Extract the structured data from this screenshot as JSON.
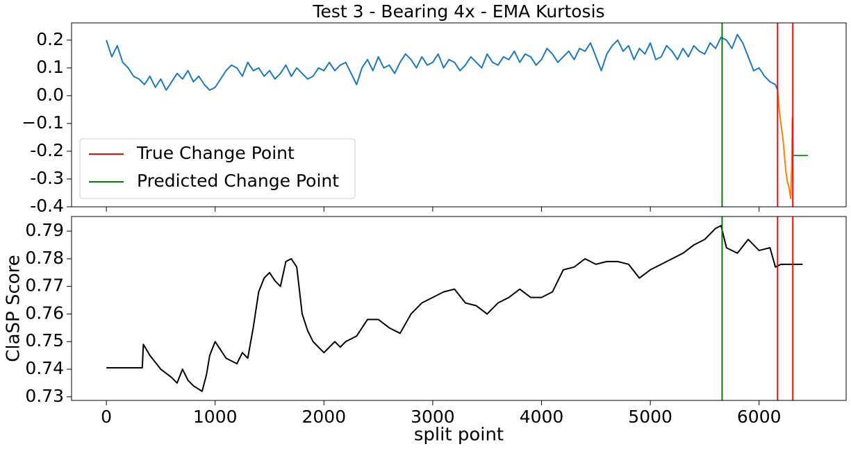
{
  "chart_data": [
    {
      "type": "line",
      "title": "Test 3 - Bearing 4x - EMA Kurtosis",
      "xlim": [
        -320,
        6800
      ],
      "xticks": [
        0,
        1000,
        2000,
        3000,
        4000,
        5000,
        6000
      ],
      "show_xtick_labels": false,
      "ylim": [
        -0.4,
        0.262
      ],
      "yticks": [
        -0.4,
        -0.3,
        -0.2,
        {
          "value": -0.1,
          "label": "−0.1"
        },
        {
          "value": 0,
          "label": "0.0"
        },
        0.1,
        0.2
      ],
      "grid": false,
      "legend": "lower left",
      "series": [
        {
          "color": "#1f77b4",
          "x": [
            0,
            50,
            100,
            150,
            200,
            250,
            300,
            350,
            400,
            450,
            500,
            550,
            600,
            650,
            700,
            750,
            800,
            850,
            900,
            950,
            1000,
            1050,
            1100,
            1150,
            1200,
            1250,
            1300,
            1350,
            1400,
            1450,
            1500,
            1550,
            1600,
            1650,
            1700,
            1750,
            1800,
            1850,
            1900,
            1950,
            2000,
            2050,
            2100,
            2150,
            2200,
            2250,
            2300,
            2350,
            2400,
            2450,
            2500,
            2550,
            2600,
            2650,
            2700,
            2750,
            2800,
            2850,
            2900,
            2950,
            3000,
            3050,
            3100,
            3150,
            3200,
            3250,
            3300,
            3350,
            3400,
            3450,
            3500,
            3550,
            3600,
            3650,
            3700,
            3750,
            3800,
            3850,
            3900,
            3950,
            4000,
            4050,
            4100,
            4150,
            4200,
            4250,
            4300,
            4350,
            4400,
            4450,
            4500,
            4550,
            4600,
            4650,
            4700,
            4750,
            4800,
            4850,
            4900,
            4950,
            5000,
            5050,
            5100,
            5150,
            5200,
            5250,
            5300,
            5350,
            5400,
            5450,
            5500,
            5550,
            5600,
            5650,
            5700,
            5750,
            5800,
            5850,
            5900,
            5950,
            6000,
            6050,
            6100,
            6150,
            6170
          ],
          "values": [
            0.2,
            0.14,
            0.18,
            0.12,
            0.1,
            0.07,
            0.06,
            0.04,
            0.07,
            0.03,
            0.06,
            0.02,
            0.05,
            0.08,
            0.06,
            0.09,
            0.05,
            0.07,
            0.04,
            0.02,
            0.03,
            0.06,
            0.09,
            0.11,
            0.1,
            0.07,
            0.12,
            0.09,
            0.1,
            0.07,
            0.09,
            0.06,
            0.08,
            0.11,
            0.07,
            0.1,
            0.08,
            0.06,
            0.07,
            0.1,
            0.09,
            0.12,
            0.09,
            0.11,
            0.12,
            0.08,
            0.04,
            0.1,
            0.13,
            0.09,
            0.14,
            0.1,
            0.11,
            0.08,
            0.12,
            0.15,
            0.13,
            0.1,
            0.14,
            0.11,
            0.12,
            0.15,
            0.1,
            0.13,
            0.12,
            0.09,
            0.11,
            0.14,
            0.12,
            0.1,
            0.15,
            0.12,
            0.11,
            0.14,
            0.13,
            0.16,
            0.12,
            0.15,
            0.14,
            0.11,
            0.13,
            0.17,
            0.15,
            0.12,
            0.14,
            0.16,
            0.13,
            0.17,
            0.16,
            0.19,
            0.14,
            0.09,
            0.15,
            0.18,
            0.2,
            0.16,
            0.18,
            0.13,
            0.17,
            0.15,
            0.19,
            0.13,
            0.14,
            0.18,
            0.16,
            0.13,
            0.17,
            0.14,
            0.18,
            0.16,
            0.15,
            0.19,
            0.17,
            0.21,
            0.2,
            0.17,
            0.22,
            0.19,
            0.14,
            0.09,
            0.1,
            0.07,
            0.05,
            0.04,
            0.02
          ]
        },
        {
          "color": "#ff7f0e",
          "x": [
            6170,
            6185,
            6200,
            6215,
            6230,
            6245,
            6260,
            6275,
            6290,
            6300,
            6305,
            6310
          ],
          "values": [
            0.02,
            -0.05,
            -0.1,
            -0.14,
            -0.2,
            -0.27,
            -0.31,
            -0.33,
            -0.37,
            -0.25,
            -0.08,
            -0.2
          ]
        },
        {
          "color": "#2ca02c",
          "x": [
            6310,
            6450
          ],
          "values": [
            -0.215,
            -0.215
          ]
        }
      ],
      "change_points": [
        {
          "name": "True Change Point",
          "color": "#ff0000",
          "values": [
            6170,
            6310
          ]
        },
        {
          "name": "Predicted Change Point",
          "color": "#008000",
          "values": [
            5660
          ]
        }
      ]
    },
    {
      "type": "line",
      "xlabel": "split point",
      "ylabel": "ClaSP Score",
      "xlim": [
        -320,
        6800
      ],
      "xticks": [
        0,
        1000,
        2000,
        3000,
        4000,
        5000,
        6000
      ],
      "show_xtick_labels": true,
      "ylim": [
        0.7287,
        0.7953
      ],
      "yticks": [
        0.73,
        0.74,
        0.75,
        0.76,
        0.77,
        0.78,
        0.79
      ],
      "grid": false,
      "series": [
        {
          "color": "#000000",
          "x": [
            0,
            330,
            340,
            400,
            500,
            600,
            650,
            700,
            750,
            800,
            880,
            920,
            950,
            1000,
            1050,
            1100,
            1200,
            1250,
            1300,
            1350,
            1400,
            1450,
            1500,
            1550,
            1600,
            1650,
            1700,
            1750,
            1800,
            1850,
            1900,
            2000,
            2100,
            2150,
            2200,
            2300,
            2400,
            2500,
            2600,
            2700,
            2800,
            2900,
            3000,
            3100,
            3200,
            3300,
            3400,
            3500,
            3600,
            3700,
            3800,
            3900,
            4000,
            4100,
            4200,
            4300,
            4400,
            4500,
            4600,
            4700,
            4800,
            4900,
            5000,
            5100,
            5200,
            5300,
            5400,
            5500,
            5600,
            5650,
            5700,
            5800,
            5900,
            6000,
            6100,
            6150,
            6200,
            6400
          ],
          "values": [
            0.7405,
            0.7405,
            0.749,
            0.745,
            0.74,
            0.737,
            0.735,
            0.74,
            0.736,
            0.734,
            0.732,
            0.738,
            0.745,
            0.75,
            0.747,
            0.744,
            0.742,
            0.746,
            0.744,
            0.755,
            0.768,
            0.773,
            0.775,
            0.772,
            0.77,
            0.779,
            0.78,
            0.777,
            0.76,
            0.754,
            0.75,
            0.746,
            0.75,
            0.748,
            0.75,
            0.752,
            0.758,
            0.758,
            0.755,
            0.753,
            0.76,
            0.764,
            0.766,
            0.768,
            0.769,
            0.764,
            0.763,
            0.76,
            0.764,
            0.766,
            0.769,
            0.766,
            0.766,
            0.768,
            0.776,
            0.777,
            0.78,
            0.778,
            0.779,
            0.779,
            0.778,
            0.773,
            0.776,
            0.778,
            0.78,
            0.782,
            0.785,
            0.787,
            0.791,
            0.792,
            0.784,
            0.782,
            0.787,
            0.783,
            0.784,
            0.777,
            0.778,
            0.778
          ]
        }
      ],
      "change_points": [
        {
          "color": "#ff0000",
          "values": [
            6170,
            6310
          ]
        },
        {
          "color": "#008000",
          "values": [
            5660
          ]
        }
      ]
    }
  ]
}
